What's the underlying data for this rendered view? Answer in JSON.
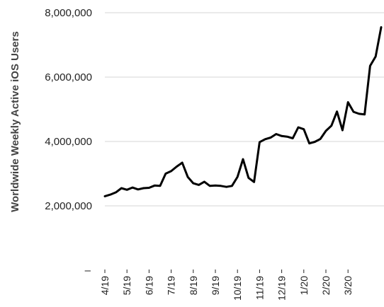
{
  "chart_data": {
    "type": "line",
    "title": "",
    "xlabel": "",
    "ylabel": "Worldwide Weekly Active iOS Users",
    "ylim": [
      0,
      8000000
    ],
    "y_ticks": [
      0,
      2000000,
      4000000,
      6000000,
      8000000
    ],
    "y_tick_labels": [
      "–",
      "2,000,000",
      "4,000,000",
      "6,000,000",
      "8,000,000"
    ],
    "x_tick_labels": [
      "4/19",
      "5/19",
      "6/19",
      "7/19",
      "8/19",
      "9/19",
      "10/19",
      "11/19",
      "12/19",
      "1/20",
      "2/20",
      "3/20"
    ],
    "grid": true,
    "legend": "none",
    "series": [
      {
        "color": "#000000",
        "x": [
          0,
          0.25,
          0.5,
          0.75,
          1,
          1.25,
          1.5,
          1.75,
          2,
          2.25,
          2.5,
          2.75,
          3,
          3.25,
          3.5,
          3.75,
          4,
          4.25,
          4.5,
          4.75,
          5,
          5.25,
          5.5,
          5.75,
          6,
          6.25,
          6.5,
          6.75,
          7,
          7.25,
          7.5,
          7.75,
          8,
          8.25,
          8.5,
          8.75,
          9,
          9.25,
          9.5,
          9.75,
          10,
          10.25,
          10.5,
          10.75,
          11,
          11.25,
          11.5,
          11.75,
          12,
          12.25,
          12.5
        ],
        "values": [
          2300000,
          2350000,
          2420000,
          2550000,
          2500000,
          2570000,
          2510000,
          2550000,
          2560000,
          2630000,
          2620000,
          3000000,
          3080000,
          3220000,
          3340000,
          2900000,
          2700000,
          2650000,
          2750000,
          2620000,
          2630000,
          2620000,
          2590000,
          2620000,
          2900000,
          3450000,
          2870000,
          2740000,
          3980000,
          4070000,
          4120000,
          4230000,
          4170000,
          4150000,
          4100000,
          4440000,
          4380000,
          3940000,
          3990000,
          4080000,
          4330000,
          4490000,
          4930000,
          4350000,
          5220000,
          4920000,
          4860000,
          4840000,
          6350000,
          6640000,
          7550000
        ]
      }
    ]
  }
}
